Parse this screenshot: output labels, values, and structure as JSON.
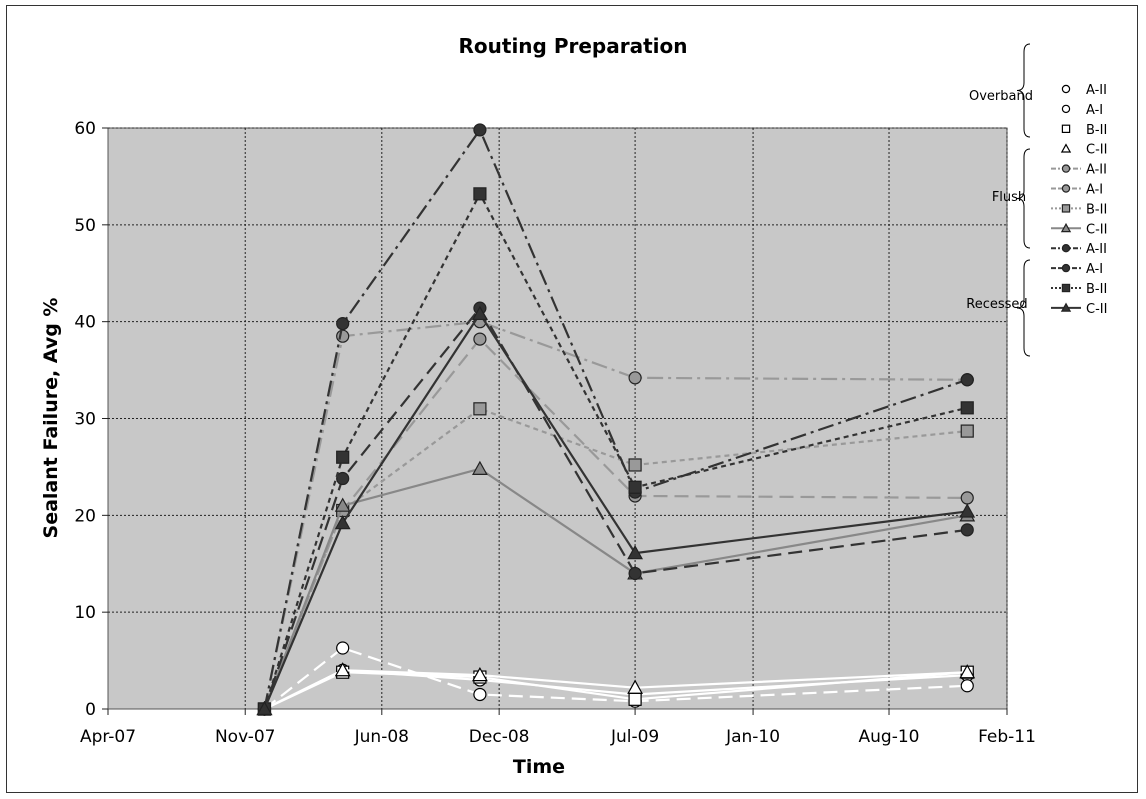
{
  "chart_data": {
    "type": "line",
    "title": "Routing Preparation",
    "xlabel": "Time",
    "ylabel": "Sealant Failure, Avg %",
    "x_ticks": [
      "Apr-07",
      "Nov-07",
      "Jun-08",
      "Dec-08",
      "Jul-09",
      "Jan-10",
      "Aug-10",
      "Feb-11"
    ],
    "x_tick_dates": [
      "2007-04-01",
      "2007-11-01",
      "2008-06-01",
      "2008-12-01",
      "2009-07-01",
      "2010-01-01",
      "2010-08-01",
      "2011-02-01"
    ],
    "ylim": [
      0,
      60
    ],
    "y_ticks": [
      0,
      10,
      20,
      30,
      40,
      50,
      60
    ],
    "grid": true,
    "legend_position": "right",
    "x": [
      "2007-12-01",
      "2008-04-01",
      "2008-11-01",
      "2009-07-01",
      "2010-12-01"
    ],
    "groups": [
      {
        "name": "Overband",
        "series_indices": [
          0,
          1,
          2,
          3
        ]
      },
      {
        "name": "Flush",
        "series_indices": [
          4,
          5,
          6,
          7
        ]
      },
      {
        "name": "Recessed",
        "series_indices": [
          8,
          9,
          10,
          11
        ]
      }
    ],
    "series": [
      {
        "name": "A-II",
        "group": "Overband",
        "values": [
          0,
          4,
          3,
          1.5,
          3.5
        ],
        "color": "#ffffff",
        "dash": "solid",
        "marker": "circle-open"
      },
      {
        "name": "A-I",
        "group": "Overband",
        "values": [
          0,
          6.3,
          1.5,
          0.8,
          2.4
        ],
        "color": "#ffffff",
        "dash": "longdash",
        "marker": "circle-open"
      },
      {
        "name": "B-II",
        "group": "Overband",
        "values": [
          0,
          3.8,
          3.3,
          1,
          3.8
        ],
        "color": "#ffffff",
        "dash": "solid",
        "marker": "square-open"
      },
      {
        "name": "C-II",
        "group": "Overband",
        "values": [
          0,
          4,
          3.5,
          2.2,
          3.8
        ],
        "color": "#ffffff",
        "dash": "solid",
        "marker": "triangle-open"
      },
      {
        "name": "A-II",
        "group": "Flush",
        "values": [
          0,
          38.5,
          40,
          34.2,
          34
        ],
        "color": "#999999",
        "dash": "dashdot",
        "marker": "circle"
      },
      {
        "name": "A-I",
        "group": "Flush",
        "values": [
          0,
          20.5,
          38.2,
          22,
          21.8
        ],
        "color": "#999999",
        "dash": "longdash",
        "marker": "circle"
      },
      {
        "name": "B-II",
        "group": "Flush",
        "values": [
          0,
          20.5,
          31,
          25.2,
          28.7
        ],
        "color": "#999999",
        "dash": "shortdash",
        "marker": "square"
      },
      {
        "name": "C-II",
        "group": "Flush",
        "values": [
          0,
          21,
          24.8,
          14,
          20
        ],
        "color": "#888888",
        "dash": "solid",
        "marker": "triangle"
      },
      {
        "name": "A-II",
        "group": "Recessed",
        "values": [
          0,
          39.8,
          59.8,
          22.4,
          34
        ],
        "color": "#333333",
        "dash": "dashdot",
        "marker": "circle"
      },
      {
        "name": "A-I",
        "group": "Recessed",
        "values": [
          0,
          23.8,
          41.4,
          14,
          18.5
        ],
        "color": "#333333",
        "dash": "longdash",
        "marker": "circle"
      },
      {
        "name": "B-II",
        "group": "Recessed",
        "values": [
          0,
          26,
          53.2,
          22.9,
          31.1
        ],
        "color": "#333333",
        "dash": "shortdash",
        "marker": "square"
      },
      {
        "name": "C-II",
        "group": "Recessed",
        "values": [
          0,
          19.2,
          40.8,
          16.1,
          20.4
        ],
        "color": "#333333",
        "dash": "solid",
        "marker": "triangle"
      }
    ]
  }
}
